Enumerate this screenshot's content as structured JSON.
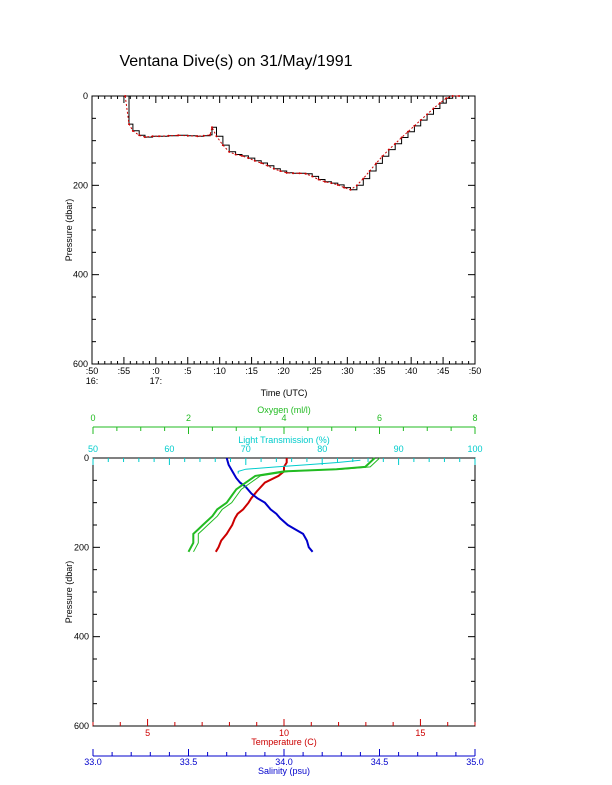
{
  "figure": {
    "title": "Ventana Dive(s) on 31/May/1991"
  },
  "chart_data": [
    {
      "type": "line",
      "title": "Ventana Dive(s) on 31/May/1991",
      "xlabel": "Time (UTC)",
      "ylabel": "Pressure (dbar)",
      "xlim": [
        50,
        110
      ],
      "ylim": [
        600,
        0
      ],
      "x_tick_values": [
        50,
        55,
        60,
        65,
        70,
        75,
        80,
        85,
        90,
        95,
        100,
        105,
        110
      ],
      "x_tick_labels": [
        ":50",
        ":55",
        ":0",
        ":5",
        ":10",
        ":15",
        ":20",
        ":25",
        ":30",
        ":35",
        ":40",
        ":45",
        ":50"
      ],
      "x_hour_labels": [
        {
          "x": 50,
          "label": "16:"
        },
        {
          "x": 60,
          "label": "17:"
        }
      ],
      "y_tick_labels": [
        0,
        200,
        400,
        600
      ],
      "series": [
        {
          "color": "#cc0000",
          "x": [
            55.2,
            55.8,
            56.4,
            57.4,
            58.3,
            59.5,
            60.5,
            62,
            63.5,
            65,
            66.5,
            67.5,
            68.5,
            68.8,
            69.5,
            70.5,
            71.5,
            72.5,
            73.5,
            74.5,
            75.5,
            76.5,
            77.5,
            78.5,
            79.5,
            80.5,
            81.5,
            82.5,
            83.5,
            84.5,
            85.5,
            86.5,
            87.5,
            88.5,
            89.5,
            90.5,
            91.5,
            92.5,
            93.5,
            94.5,
            95.5,
            96.5,
            97.5,
            98.5,
            99.5,
            100.5,
            101.5,
            102.5,
            103.5,
            104.5,
            105.5,
            106.5,
            107.5
          ],
          "y": [
            0,
            63,
            78,
            88,
            92,
            90,
            90,
            89,
            88,
            89,
            90,
            89,
            87,
            70,
            90,
            110,
            125,
            131,
            134,
            139,
            145,
            150,
            156,
            163,
            168,
            172,
            173,
            173,
            174,
            180,
            187,
            192,
            195,
            199,
            205,
            210,
            200,
            185,
            168,
            151,
            135,
            120,
            107,
            93,
            80,
            67,
            54,
            41,
            28,
            16,
            5,
            0,
            0
          ]
        }
      ]
    },
    {
      "type": "line",
      "ylabel": "Pressure (dbar)",
      "ylim": [
        600,
        0
      ],
      "y_tick_labels": [
        0,
        200,
        400,
        600
      ],
      "axes": [
        {
          "label": "Oxygen (ml/l)",
          "position": "top",
          "color": "#22bb22",
          "range": [
            0,
            8
          ],
          "ticks": [
            0,
            2,
            4,
            6,
            8
          ]
        },
        {
          "label": "Light Transmission (%)",
          "position": "top",
          "color": "#00cccc",
          "range": [
            50,
            100
          ],
          "ticks": [
            50,
            60,
            70,
            80,
            90,
            100
          ]
        },
        {
          "label": "Temperature (C)",
          "position": "bottom",
          "color": "#cc0000",
          "range": [
            3,
            17
          ],
          "ticks": [
            5,
            10,
            15
          ]
        },
        {
          "label": "Salinity (psu)",
          "position": "bottom",
          "color": "#0000cc",
          "range": [
            33.0,
            35.0
          ],
          "ticks": [
            "33.0",
            "33.5",
            "34.0",
            "34.5",
            "35.0"
          ]
        }
      ],
      "series": [
        {
          "name": "Temperature (C)",
          "color": "#cc0000",
          "axis": "Temperature (C)",
          "x": [
            10.1,
            10.1,
            10.0,
            10.0,
            9.8,
            9.3,
            9.0,
            8.8,
            8.7,
            8.5,
            8.3,
            8.2,
            8.1,
            8.0,
            7.9,
            7.7,
            7.6,
            7.5
          ],
          "y": [
            0,
            10,
            20,
            30,
            40,
            55,
            75,
            90,
            100,
            115,
            125,
            135,
            150,
            160,
            170,
            185,
            200,
            210
          ]
        },
        {
          "name": "Salinity (psu)",
          "color": "#0000cc",
          "axis": "Salinity (psu)",
          "x": [
            33.7,
            33.71,
            33.73,
            33.75,
            33.77,
            33.8,
            33.83,
            33.86,
            33.9,
            33.93,
            33.96,
            33.98,
            34.02,
            34.06,
            34.1,
            34.12,
            34.13,
            34.15
          ],
          "y": [
            0,
            15,
            30,
            45,
            55,
            65,
            80,
            90,
            100,
            115,
            125,
            135,
            150,
            160,
            170,
            185,
            200,
            210
          ]
        },
        {
          "name": "Oxygen (ml/l)",
          "color": "#22bb22",
          "axis": "Oxygen (ml/l)",
          "x": [
            5.9,
            5.8,
            5.7,
            5.1,
            4.0,
            3.4,
            3.2,
            3.0,
            2.9,
            2.8,
            2.6,
            2.5,
            2.3,
            2.2,
            2.1,
            2.1,
            2.0
          ],
          "y": [
            0,
            10,
            20,
            25,
            30,
            40,
            55,
            70,
            85,
            100,
            115,
            130,
            150,
            160,
            170,
            190,
            210
          ]
        },
        {
          "name": "Light Transmission (%)",
          "color": "#00cccc",
          "axis": "Light Transmission (%)",
          "x": [
            85.0,
            82.0,
            78.0,
            74.0,
            70.0,
            69.0,
            69.0
          ],
          "y": [
            5,
            10,
            15,
            20,
            25,
            30,
            35
          ]
        }
      ]
    }
  ]
}
